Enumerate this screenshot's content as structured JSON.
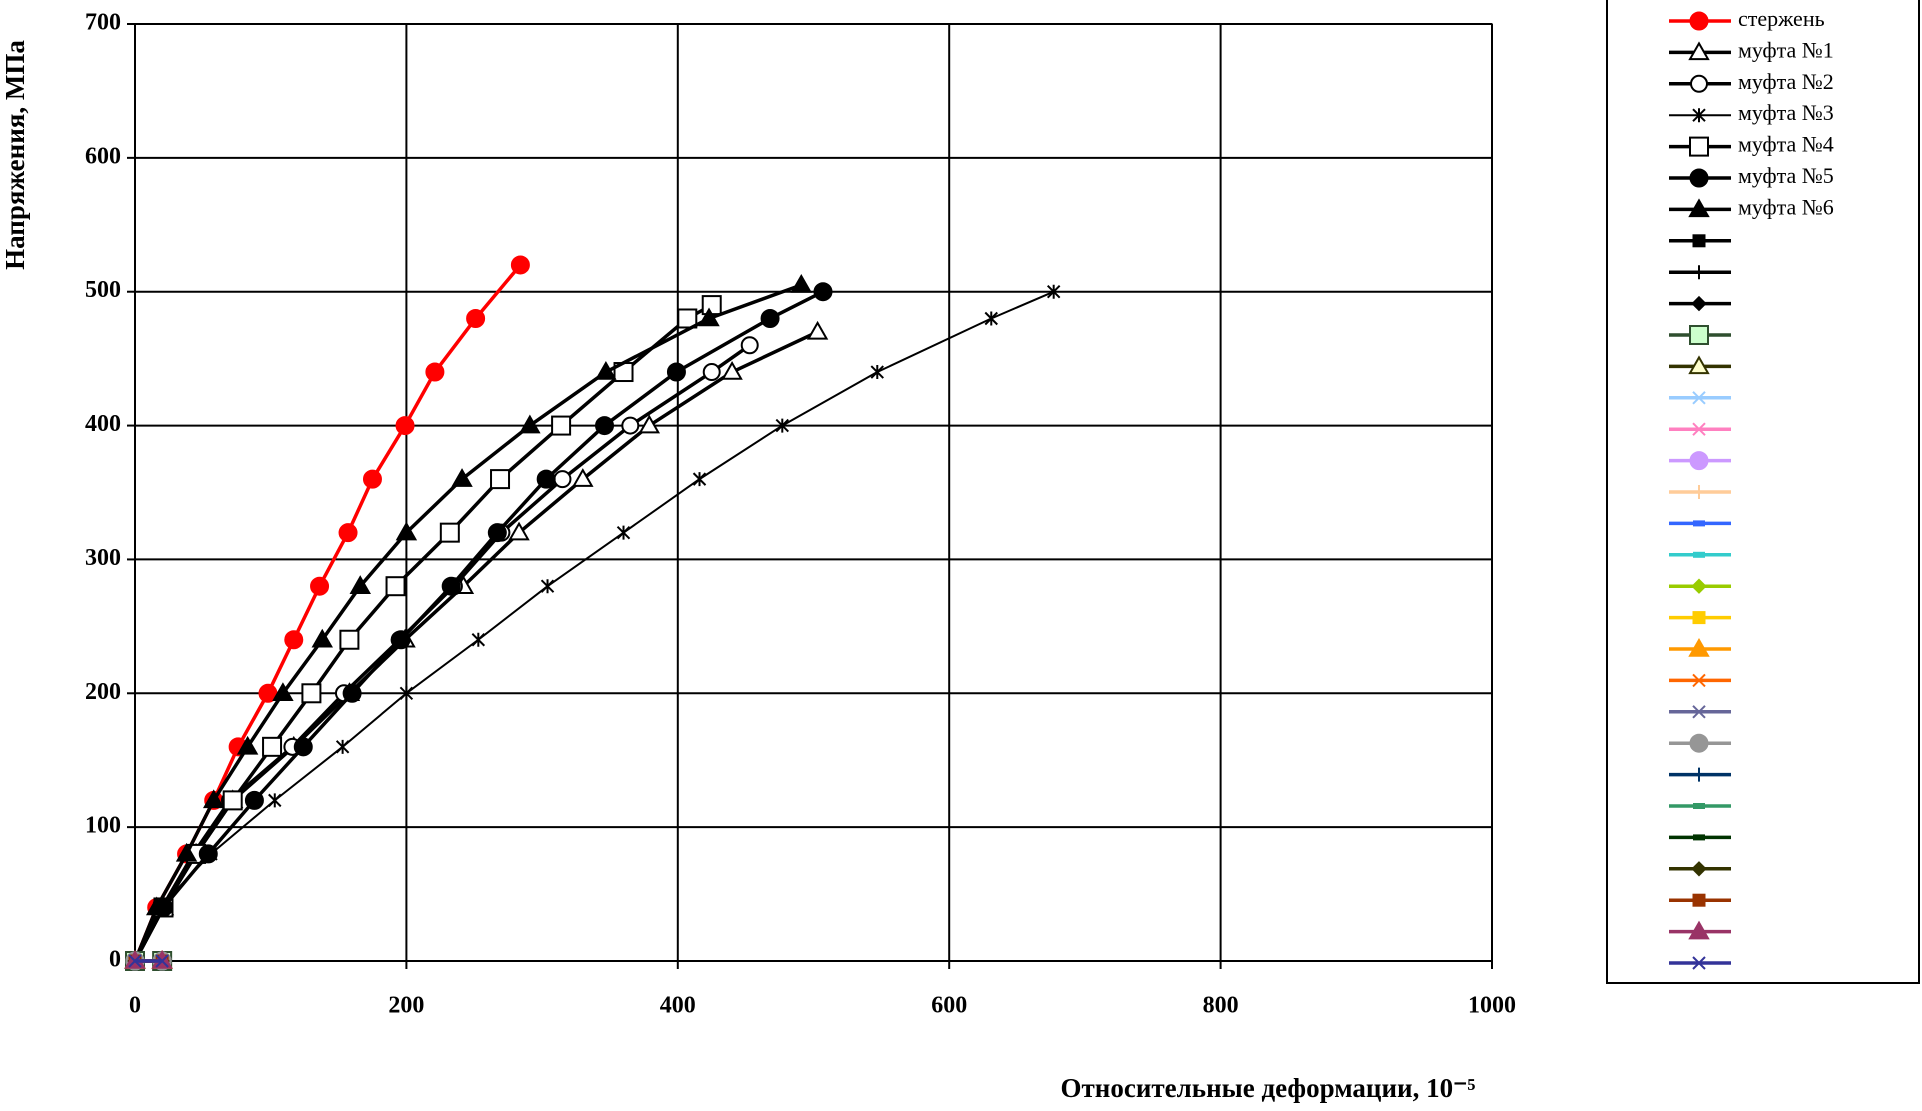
{
  "chart_data": {
    "type": "line",
    "x_label": "Относительные деформации, 10⁻⁵",
    "y_label": "Напряжения, МПа",
    "xlim": [
      0,
      1000
    ],
    "xticks": [
      0,
      200,
      400,
      600,
      800,
      1000
    ],
    "ylim": [
      0,
      700
    ],
    "yticks": [
      0,
      100,
      200,
      300,
      400,
      500,
      600,
      700
    ],
    "grid": true,
    "legend": "right",
    "series": [
      {
        "name": "стержень",
        "color": "#ff0000",
        "marker": "circle",
        "x": [
          0,
          16,
          38,
          58,
          76,
          98,
          117,
          136,
          157,
          175,
          199,
          221,
          251,
          284
        ],
        "values": [
          0,
          40,
          80,
          120,
          160,
          200,
          240,
          280,
          320,
          360,
          400,
          440,
          480,
          520
        ]
      },
      {
        "name": "муфта №1",
        "color": "#000000",
        "marker": "triangle-open",
        "x": [
          0,
          21,
          45,
          72,
          117,
          158,
          199,
          242,
          283,
          330,
          379,
          440,
          503
        ],
        "values": [
          0,
          40,
          80,
          120,
          160,
          200,
          240,
          280,
          320,
          360,
          400,
          440,
          470
        ]
      },
      {
        "name": "муфта №2",
        "color": "#000000",
        "marker": "circle-open",
        "x": [
          0,
          20,
          43,
          70,
          116,
          154,
          195,
          235,
          270,
          315,
          365,
          425,
          453
        ],
        "values": [
          0,
          40,
          80,
          120,
          160,
          200,
          240,
          280,
          320,
          360,
          400,
          440,
          460
        ]
      },
      {
        "name": "муфта №3",
        "color": "#000000",
        "marker": "star",
        "x": [
          0,
          18,
          56,
          103,
          153,
          200,
          253,
          304,
          360,
          416,
          477,
          547,
          631,
          677
        ],
        "values": [
          0,
          40,
          80,
          120,
          160,
          200,
          240,
          280,
          320,
          360,
          400,
          440,
          480,
          500
        ]
      },
      {
        "name": "муфта №4",
        "color": "#000000",
        "marker": "square-open",
        "x": [
          0,
          21,
          45,
          72,
          101,
          130,
          158,
          192,
          232,
          269,
          314,
          360,
          407,
          425
        ],
        "values": [
          0,
          40,
          80,
          120,
          160,
          200,
          240,
          280,
          320,
          360,
          400,
          440,
          480,
          490
        ]
      },
      {
        "name": "муфта №5",
        "color": "#000000",
        "marker": "circle",
        "x": [
          0,
          21,
          54,
          88,
          124,
          160,
          196,
          233,
          267,
          303,
          346,
          399,
          468,
          507
        ],
        "values": [
          0,
          40,
          80,
          120,
          160,
          200,
          240,
          280,
          320,
          360,
          400,
          440,
          480,
          500
        ]
      },
      {
        "name": "муфта №6",
        "color": "#000000",
        "marker": "triangle",
        "x": [
          0,
          16,
          38,
          58,
          83,
          109,
          138,
          166,
          200,
          241,
          291,
          347,
          423,
          491
        ],
        "values": [
          0,
          40,
          80,
          120,
          160,
          200,
          240,
          280,
          320,
          360,
          400,
          440,
          480,
          505
        ]
      },
      {
        "color": "#000000",
        "marker": "square",
        "x": [
          0,
          20
        ],
        "values": [
          0,
          0
        ]
      },
      {
        "color": "#000000",
        "marker": "plus",
        "x": [
          0,
          20
        ],
        "values": [
          0,
          0
        ]
      },
      {
        "color": "#000000",
        "marker": "diamond",
        "x": [
          0,
          20
        ],
        "values": [
          0,
          0
        ]
      },
      {
        "color": "#2f4f2f",
        "marker": "square-light",
        "x": [
          0,
          20
        ],
        "values": [
          0,
          0
        ]
      },
      {
        "color": "#333300",
        "marker": "triangle-light",
        "x": [
          0,
          20
        ],
        "values": [
          0,
          0
        ]
      },
      {
        "color": "#99ccff",
        "marker": "x",
        "x": [
          0,
          20
        ],
        "values": [
          0,
          0
        ]
      },
      {
        "color": "#ff80c0",
        "marker": "x",
        "x": [
          0,
          20
        ],
        "values": [
          0,
          0
        ]
      },
      {
        "color": "#cc99ff",
        "marker": "circle",
        "x": [
          0,
          20
        ],
        "values": [
          0,
          0
        ]
      },
      {
        "color": "#ffcc99",
        "marker": "plus",
        "x": [
          0,
          20
        ],
        "values": [
          0,
          0
        ]
      },
      {
        "color": "#3366ff",
        "marker": "dash",
        "x": [
          0,
          20
        ],
        "values": [
          0,
          0
        ]
      },
      {
        "color": "#33cccc",
        "marker": "dash",
        "x": [
          0,
          20
        ],
        "values": [
          0,
          0
        ]
      },
      {
        "color": "#99cc00",
        "marker": "diamond",
        "x": [
          0,
          20
        ],
        "values": [
          0,
          0
        ]
      },
      {
        "color": "#ffcc00",
        "marker": "square",
        "x": [
          0,
          20
        ],
        "values": [
          0,
          0
        ]
      },
      {
        "color": "#ff9900",
        "marker": "triangle",
        "x": [
          0,
          20
        ],
        "values": [
          0,
          0
        ]
      },
      {
        "color": "#ff6600",
        "marker": "x",
        "x": [
          0,
          20
        ],
        "values": [
          0,
          0
        ]
      },
      {
        "color": "#666699",
        "marker": "x",
        "x": [
          0,
          20
        ],
        "values": [
          0,
          0
        ]
      },
      {
        "color": "#969696",
        "marker": "circle",
        "x": [
          0,
          20
        ],
        "values": [
          0,
          0
        ]
      },
      {
        "color": "#003366",
        "marker": "plus",
        "x": [
          0,
          20
        ],
        "values": [
          0,
          0
        ]
      },
      {
        "color": "#339966",
        "marker": "dash",
        "x": [
          0,
          20
        ],
        "values": [
          0,
          0
        ]
      },
      {
        "color": "#003300",
        "marker": "dash",
        "x": [
          0,
          20
        ],
        "values": [
          0,
          0
        ]
      },
      {
        "color": "#333300",
        "marker": "diamond",
        "x": [
          0,
          20
        ],
        "values": [
          0,
          0
        ]
      },
      {
        "color": "#993300",
        "marker": "square",
        "x": [
          0,
          20
        ],
        "values": [
          0,
          0
        ]
      },
      {
        "color": "#993366",
        "marker": "triangle",
        "x": [
          0,
          20
        ],
        "values": [
          0,
          0
        ]
      },
      {
        "color": "#333399",
        "marker": "x",
        "x": [
          0,
          20
        ],
        "values": [
          0,
          0
        ]
      }
    ]
  }
}
